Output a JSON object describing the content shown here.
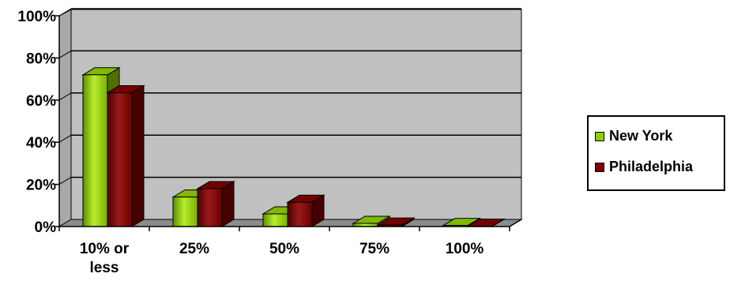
{
  "chart_data": {
    "type": "bar",
    "categories": [
      "10% or less",
      "25%",
      "50%",
      "75%",
      "100%"
    ],
    "series": [
      {
        "name": "New York",
        "values": [
          72,
          14,
          6,
          1.5,
          0.5
        ],
        "color": "#8FCC00"
      },
      {
        "name": "Philadelphia",
        "values": [
          63.5,
          18,
          11.5,
          0.7,
          0.2
        ],
        "color": "#800000"
      }
    ],
    "ylim": [
      0,
      100
    ],
    "yticks": [
      "0%",
      "20%",
      "40%",
      "60%",
      "80%",
      "100%"
    ],
    "grid": true,
    "legend_position": "right",
    "plot_background": "#C0C0C0"
  }
}
